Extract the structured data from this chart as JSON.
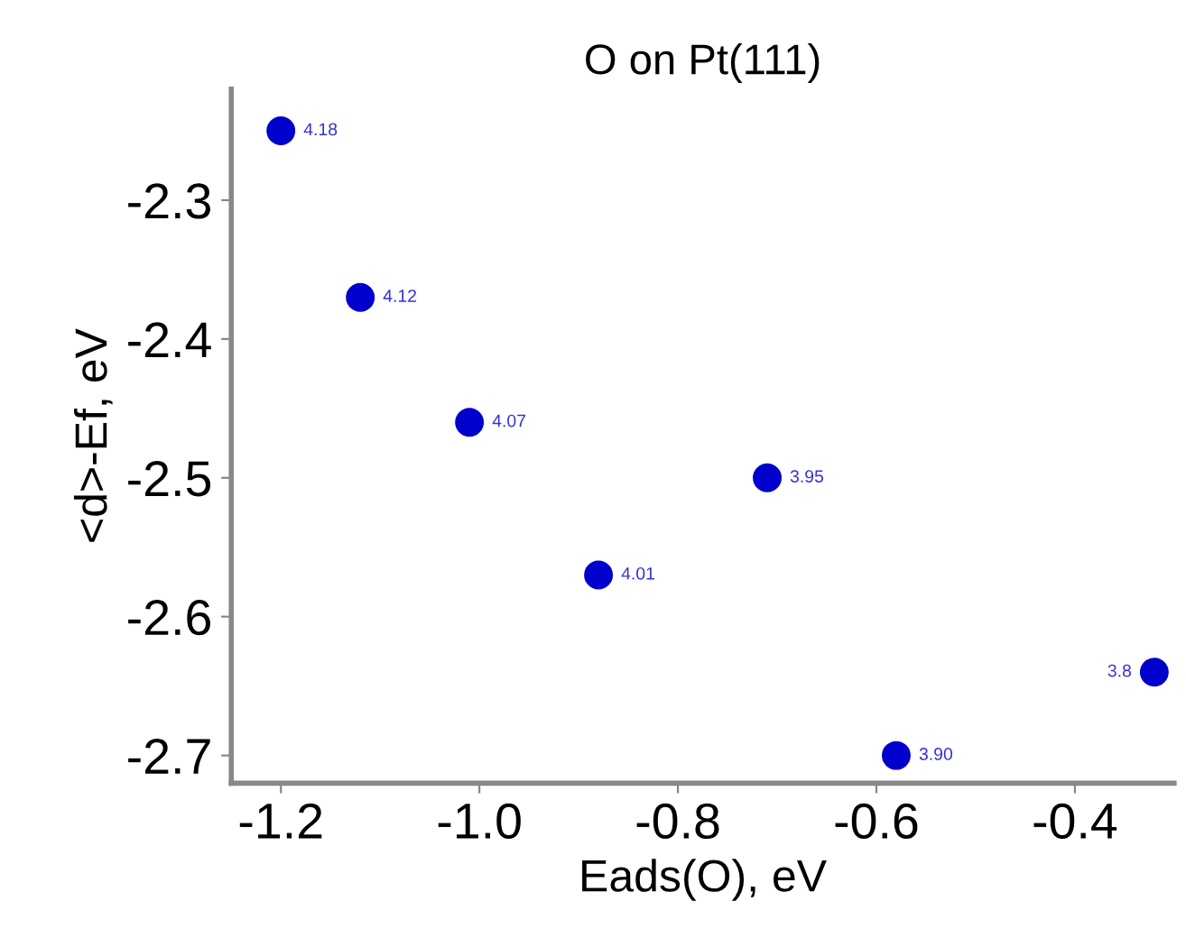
{
  "chart_data": {
    "type": "scatter",
    "title": "O on Pt(111)",
    "xlabel": "Eads(O), eV",
    "ylabel": "<d>-Ef, eV",
    "x": [
      -1.2,
      -1.12,
      -1.01,
      -0.88,
      -0.71,
      -0.58,
      -0.32
    ],
    "series": [
      {
        "color": "#0000cc",
        "values": [
          -2.25,
          -2.37,
          -2.46,
          -2.57,
          -2.5,
          -2.7,
          -2.64
        ]
      }
    ],
    "annotations": [
      {
        "text": "4.18",
        "x": -1.2,
        "y": -2.25
      },
      {
        "text": "4.12",
        "x": -1.12,
        "y": -2.37
      },
      {
        "text": "4.07",
        "x": -1.01,
        "y": -2.46
      },
      {
        "text": "4.01",
        "x": -0.88,
        "y": -2.57
      },
      {
        "text": "3.95",
        "x": -0.71,
        "y": -2.5
      },
      {
        "text": "3.90",
        "x": -0.58,
        "y": -2.7
      },
      {
        "text": "3.8",
        "x": -0.32,
        "y": -2.64
      }
    ],
    "xlim": [
      -1.25,
      -0.3
    ],
    "ylim": [
      -2.72,
      -2.22
    ],
    "xticks": [
      {
        "value": -1.2,
        "label": "-1.2"
      },
      {
        "value": -1.0,
        "label": "-1.0"
      },
      {
        "value": -0.8,
        "label": "-0.8"
      },
      {
        "value": -0.6,
        "label": "-0.6"
      },
      {
        "value": -0.4,
        "label": "-0.4"
      }
    ],
    "yticks": [
      {
        "value": -2.3,
        "label": "-2.3"
      },
      {
        "value": -2.4,
        "label": "-2.4"
      },
      {
        "value": -2.5,
        "label": "-2.5"
      },
      {
        "value": -2.6,
        "label": "-2.6"
      },
      {
        "value": -2.7,
        "label": "-2.7"
      }
    ],
    "marker": "circle",
    "grid": false,
    "legend": false
  }
}
